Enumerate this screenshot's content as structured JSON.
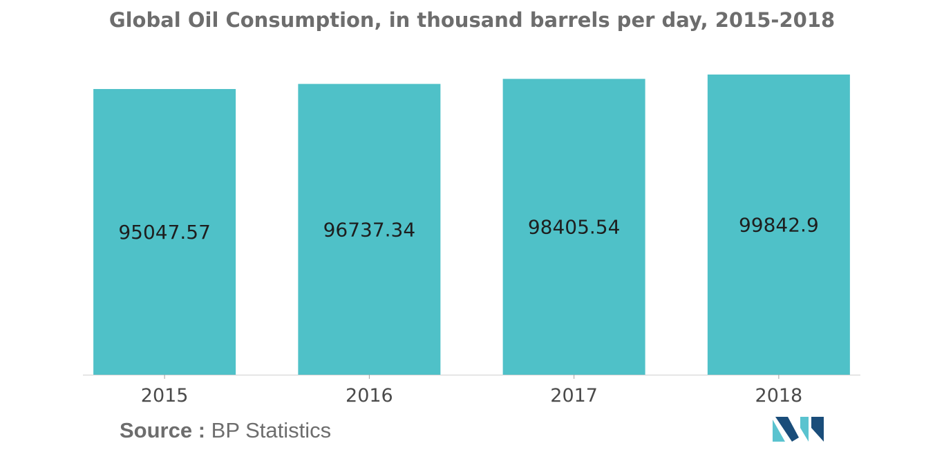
{
  "chart_data": {
    "type": "bar",
    "title": "Global Oil Consumption, in thousand barrels per day, 2015-2018",
    "categories": [
      "2015",
      "2016",
      "2017",
      "2018"
    ],
    "values": [
      95047.57,
      96737.34,
      98405.54,
      99842.9
    ],
    "value_labels": [
      "95047.57",
      "96737.34",
      "98405.54",
      "99842.9"
    ],
    "xlabel": "",
    "ylabel": "",
    "grid": false,
    "legend": "none",
    "bar_color": "#4fc1c8"
  },
  "source": {
    "label": "Source :",
    "text": "BP Statistics"
  },
  "logo": {
    "icon": "mordor-intelligence-logo",
    "colors": [
      "#1a4d7a",
      "#5ac3cf"
    ]
  }
}
